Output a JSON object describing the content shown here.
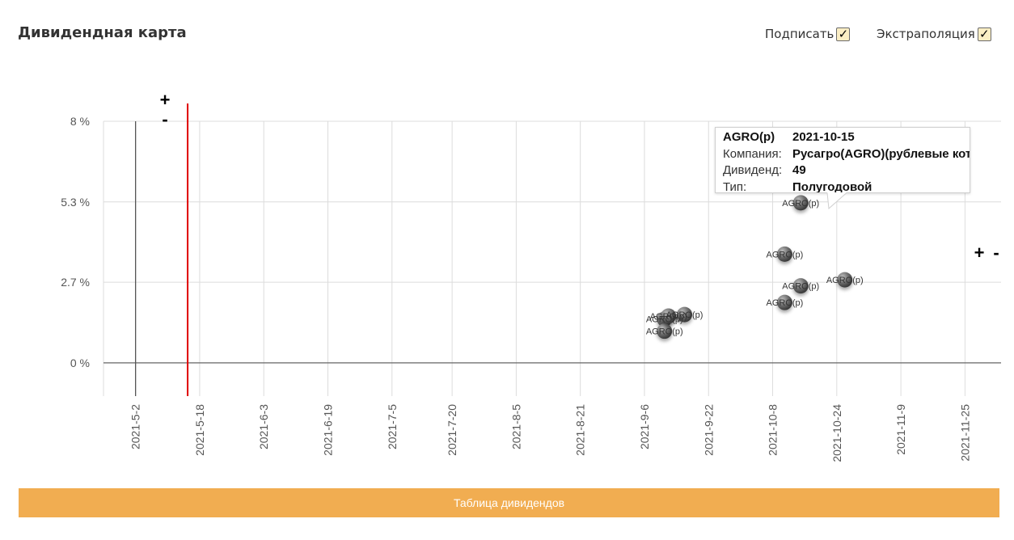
{
  "page": {
    "title": "Дивидендная карта"
  },
  "controls": {
    "label_option": {
      "label": "Подписать",
      "checked": true
    },
    "extrapolation_option": {
      "label": "Экстраполяция",
      "checked": true
    }
  },
  "chart_data": {
    "type": "scatter",
    "x_axis": {
      "type": "date",
      "ticks": [
        "2021-5-2",
        "2021-5-18",
        "2021-6-3",
        "2021-6-19",
        "2021-7-5",
        "2021-7-20",
        "2021-8-5",
        "2021-8-21",
        "2021-9-6",
        "2021-9-22",
        "2021-10-8",
        "2021-10-24",
        "2021-11-9",
        "2021-11-25"
      ],
      "range": [
        "2021-04-24",
        "2021-12-04"
      ]
    },
    "y_axis": {
      "unit": "%",
      "ticks": [
        {
          "value": 0,
          "label": "0 %"
        },
        {
          "value": 2.67,
          "label": "2.7 %"
        },
        {
          "value": 5.33,
          "label": "5.3 %"
        },
        {
          "value": 8,
          "label": "8 %"
        }
      ],
      "range": [
        -1.1,
        8
      ]
    },
    "grid": true,
    "reference_lines": [
      {
        "date": "2021-05-02",
        "color": "#555555"
      },
      {
        "date": "2021-05-15",
        "color": "#e00000"
      }
    ],
    "zoom_controls": {
      "plus": "+",
      "minus": "-"
    },
    "points": [
      {
        "date": "2021-09-11",
        "value": 1.45,
        "label": "AGRO(p)"
      },
      {
        "date": "2021-09-11",
        "value": 1.05,
        "label": "AGRO(p)"
      },
      {
        "date": "2021-09-12",
        "value": 1.55,
        "label": "AGRO(p)"
      },
      {
        "date": "2021-09-16",
        "value": 1.6,
        "label": "AGRO(p)"
      },
      {
        "date": "2021-10-11",
        "value": 3.6,
        "label": "AGRO(p)"
      },
      {
        "date": "2021-10-11",
        "value": 2.0,
        "label": "AGRO(p)"
      },
      {
        "date": "2021-10-15",
        "value": 5.3,
        "label": "AGRO(p)"
      },
      {
        "date": "2021-10-15",
        "value": 2.55,
        "label": "AGRO(p)"
      },
      {
        "date": "2021-10-26",
        "value": 2.75,
        "label": "AGRO(p)"
      }
    ]
  },
  "tooltip": {
    "ticker": "AGRO(p)",
    "date": "2021-10-15",
    "rows": [
      {
        "key": "Компания:",
        "value": "Русагро(AGRO)(рублевые котировки)"
      },
      {
        "key": "Дивиденд:",
        "value": "49"
      },
      {
        "key": "Тип:",
        "value": "Полугодовой"
      }
    ]
  },
  "table_button": {
    "label": "Таблица дивидендов",
    "color": "#f1ad51"
  }
}
